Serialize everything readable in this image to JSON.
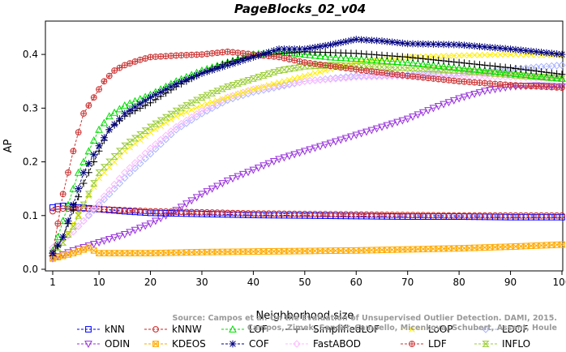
{
  "chart_data": {
    "type": "line",
    "title": "PageBlocks_02_v04",
    "xlabel": "Neighborhood size",
    "ylabel": "AP",
    "xlim": [
      1,
      100
    ],
    "ylim": [
      0,
      0.45
    ],
    "xticks": [
      1,
      10,
      20,
      30,
      40,
      50,
      60,
      70,
      80,
      90,
      100
    ],
    "yticks": [
      0.0,
      0.1,
      0.2,
      0.3,
      0.4
    ],
    "ytick_labels": [
      "0.0",
      "0.1",
      "0.2",
      "0.3",
      "0.4"
    ],
    "grid": false,
    "legend_position": "bottom",
    "annotation": "Source: Campos et al. On the Evaluation of Unsupervised Outlier Detection. DAMI, 2015.",
    "annotation_lines": [
      "Source: Campos et al. On the Evaluation of Unsupervised Outlier Detection. DAMI, 2015.",
      "Campos, Zimek, Sander, Campello, Micenkova, Schubert, Assent, Houle"
    ],
    "series": [
      {
        "name": "kNN",
        "color": "#0000ff",
        "marker": "square",
        "points": [
          [
            1,
            0.115
          ],
          [
            2,
            0.117
          ],
          [
            3,
            0.118
          ],
          [
            5,
            0.116
          ],
          [
            10,
            0.112
          ],
          [
            15,
            0.108
          ],
          [
            20,
            0.105
          ],
          [
            30,
            0.103
          ],
          [
            40,
            0.101
          ],
          [
            50,
            0.1
          ],
          [
            60,
            0.099
          ],
          [
            70,
            0.098
          ],
          [
            80,
            0.098
          ],
          [
            90,
            0.097
          ],
          [
            100,
            0.097
          ]
        ]
      },
      {
        "name": "kNNW",
        "color": "#cc2222",
        "marker": "circle",
        "points": [
          [
            1,
            0.108
          ],
          [
            2,
            0.112
          ],
          [
            3,
            0.113
          ],
          [
            5,
            0.113
          ],
          [
            10,
            0.112
          ],
          [
            15,
            0.11
          ],
          [
            20,
            0.108
          ],
          [
            30,
            0.106
          ],
          [
            40,
            0.104
          ],
          [
            50,
            0.103
          ],
          [
            60,
            0.102
          ],
          [
            70,
            0.101
          ],
          [
            80,
            0.1
          ],
          [
            90,
            0.1
          ],
          [
            100,
            0.1
          ]
        ]
      },
      {
        "name": "LOF",
        "color": "#00dd00",
        "marker": "triangle",
        "points": [
          [
            1,
            0.035
          ],
          [
            2,
            0.06
          ],
          [
            3,
            0.09
          ],
          [
            4,
            0.12
          ],
          [
            5,
            0.15
          ],
          [
            6,
            0.18
          ],
          [
            8,
            0.22
          ],
          [
            10,
            0.26
          ],
          [
            12,
            0.285
          ],
          [
            15,
            0.305
          ],
          [
            20,
            0.325
          ],
          [
            25,
            0.35
          ],
          [
            30,
            0.37
          ],
          [
            35,
            0.385
          ],
          [
            40,
            0.4
          ],
          [
            45,
            0.405
          ],
          [
            50,
            0.4
          ],
          [
            55,
            0.395
          ],
          [
            60,
            0.392
          ],
          [
            70,
            0.385
          ],
          [
            80,
            0.375
          ],
          [
            90,
            0.365
          ],
          [
            100,
            0.355
          ]
        ]
      },
      {
        "name": "SimplifiedLOF",
        "color": "#000000",
        "marker": "plus",
        "points": [
          [
            1,
            0.025
          ],
          [
            3,
            0.06
          ],
          [
            5,
            0.11
          ],
          [
            7,
            0.16
          ],
          [
            10,
            0.22
          ],
          [
            12,
            0.26
          ],
          [
            15,
            0.285
          ],
          [
            20,
            0.31
          ],
          [
            25,
            0.34
          ],
          [
            30,
            0.365
          ],
          [
            35,
            0.385
          ],
          [
            40,
            0.398
          ],
          [
            50,
            0.405
          ],
          [
            60,
            0.402
          ],
          [
            70,
            0.395
          ],
          [
            80,
            0.385
          ],
          [
            90,
            0.375
          ],
          [
            100,
            0.363
          ]
        ]
      },
      {
        "name": "LoOP",
        "color": "#ffee00",
        "marker": "x",
        "points": [
          [
            1,
            0.03
          ],
          [
            3,
            0.05
          ],
          [
            5,
            0.085
          ],
          [
            7,
            0.12
          ],
          [
            10,
            0.17
          ],
          [
            15,
            0.22
          ],
          [
            20,
            0.255
          ],
          [
            25,
            0.285
          ],
          [
            30,
            0.305
          ],
          [
            35,
            0.32
          ],
          [
            40,
            0.335
          ],
          [
            50,
            0.36
          ],
          [
            60,
            0.385
          ],
          [
            70,
            0.395
          ],
          [
            80,
            0.398
          ],
          [
            90,
            0.4
          ],
          [
            100,
            0.398
          ]
        ]
      },
      {
        "name": "LDOF",
        "color": "#aab4ff",
        "marker": "diamond",
        "points": [
          [
            1,
            0.04
          ],
          [
            3,
            0.055
          ],
          [
            5,
            0.07
          ],
          [
            7,
            0.09
          ],
          [
            10,
            0.12
          ],
          [
            15,
            0.17
          ],
          [
            20,
            0.215
          ],
          [
            25,
            0.26
          ],
          [
            30,
            0.29
          ],
          [
            35,
            0.315
          ],
          [
            40,
            0.33
          ],
          [
            50,
            0.35
          ],
          [
            60,
            0.36
          ],
          [
            70,
            0.362
          ],
          [
            80,
            0.365
          ],
          [
            90,
            0.372
          ],
          [
            100,
            0.38
          ]
        ]
      },
      {
        "name": "ODIN",
        "color": "#9933dd",
        "marker": "triangle-down",
        "points": [
          [
            1,
            0.02
          ],
          [
            5,
            0.035
          ],
          [
            10,
            0.05
          ],
          [
            15,
            0.065
          ],
          [
            20,
            0.085
          ],
          [
            25,
            0.11
          ],
          [
            30,
            0.14
          ],
          [
            35,
            0.165
          ],
          [
            40,
            0.185
          ],
          [
            45,
            0.205
          ],
          [
            50,
            0.22
          ],
          [
            55,
            0.235
          ],
          [
            60,
            0.25
          ],
          [
            65,
            0.265
          ],
          [
            70,
            0.28
          ],
          [
            75,
            0.3
          ],
          [
            80,
            0.318
          ],
          [
            85,
            0.332
          ],
          [
            90,
            0.34
          ],
          [
            95,
            0.342
          ],
          [
            100,
            0.34
          ]
        ]
      },
      {
        "name": "KDEOS",
        "color": "#ffaa00",
        "marker": "square-x",
        "points": [
          [
            1,
            0.02
          ],
          [
            3,
            0.025
          ],
          [
            5,
            0.03
          ],
          [
            8,
            0.04
          ],
          [
            10,
            0.03
          ],
          [
            20,
            0.03
          ],
          [
            30,
            0.032
          ],
          [
            40,
            0.033
          ],
          [
            50,
            0.034
          ],
          [
            60,
            0.035
          ],
          [
            70,
            0.037
          ],
          [
            80,
            0.039
          ],
          [
            90,
            0.042
          ],
          [
            100,
            0.046
          ]
        ]
      },
      {
        "name": "COF",
        "color": "#000080",
        "marker": "asterisk",
        "points": [
          [
            1,
            0.03
          ],
          [
            3,
            0.06
          ],
          [
            5,
            0.12
          ],
          [
            7,
            0.18
          ],
          [
            10,
            0.23
          ],
          [
            12,
            0.26
          ],
          [
            15,
            0.29
          ],
          [
            20,
            0.32
          ],
          [
            25,
            0.345
          ],
          [
            30,
            0.365
          ],
          [
            35,
            0.38
          ],
          [
            40,
            0.395
          ],
          [
            45,
            0.41
          ],
          [
            50,
            0.41
          ],
          [
            55,
            0.418
          ],
          [
            60,
            0.428
          ],
          [
            65,
            0.425
          ],
          [
            70,
            0.42
          ],
          [
            80,
            0.418
          ],
          [
            90,
            0.41
          ],
          [
            100,
            0.4
          ]
        ]
      },
      {
        "name": "FastABOD",
        "color": "#ffbbff",
        "marker": "diamond",
        "points": [
          [
            1,
            0.04
          ],
          [
            3,
            0.055
          ],
          [
            5,
            0.07
          ],
          [
            7,
            0.09
          ],
          [
            10,
            0.125
          ],
          [
            15,
            0.18
          ],
          [
            20,
            0.225
          ],
          [
            25,
            0.265
          ],
          [
            30,
            0.295
          ],
          [
            35,
            0.32
          ],
          [
            40,
            0.335
          ],
          [
            50,
            0.35
          ],
          [
            60,
            0.358
          ],
          [
            70,
            0.36
          ],
          [
            80,
            0.36
          ],
          [
            90,
            0.358
          ],
          [
            100,
            0.355
          ]
        ]
      },
      {
        "name": "LDF",
        "color": "#cc3333",
        "marker": "circle-plus",
        "points": [
          [
            1,
            0.03
          ],
          [
            3,
            0.14
          ],
          [
            5,
            0.22
          ],
          [
            7,
            0.29
          ],
          [
            9,
            0.32
          ],
          [
            11,
            0.35
          ],
          [
            13,
            0.37
          ],
          [
            15,
            0.38
          ],
          [
            18,
            0.39
          ],
          [
            20,
            0.395
          ],
          [
            25,
            0.398
          ],
          [
            30,
            0.4
          ],
          [
            35,
            0.405
          ],
          [
            40,
            0.4
          ],
          [
            45,
            0.395
          ],
          [
            50,
            0.385
          ],
          [
            60,
            0.372
          ],
          [
            70,
            0.36
          ],
          [
            80,
            0.35
          ],
          [
            90,
            0.343
          ],
          [
            100,
            0.338
          ]
        ]
      },
      {
        "name": "INFLO",
        "color": "#99cc33",
        "marker": "hourglass",
        "points": [
          [
            1,
            0.03
          ],
          [
            3,
            0.05
          ],
          [
            5,
            0.08
          ],
          [
            7,
            0.12
          ],
          [
            10,
            0.18
          ],
          [
            15,
            0.23
          ],
          [
            20,
            0.265
          ],
          [
            25,
            0.295
          ],
          [
            30,
            0.32
          ],
          [
            35,
            0.34
          ],
          [
            40,
            0.355
          ],
          [
            45,
            0.37
          ],
          [
            50,
            0.378
          ],
          [
            55,
            0.38
          ],
          [
            60,
            0.378
          ],
          [
            70,
            0.375
          ],
          [
            80,
            0.37
          ],
          [
            90,
            0.362
          ],
          [
            100,
            0.355
          ]
        ]
      }
    ],
    "legend_order": [
      "kNN",
      "kNNW",
      "LOF",
      "SimplifiedLOF",
      "LoOP",
      "LDOF",
      "ODIN",
      "KDEOS",
      "COF",
      "FastABOD",
      "LDF",
      "INFLO"
    ]
  }
}
